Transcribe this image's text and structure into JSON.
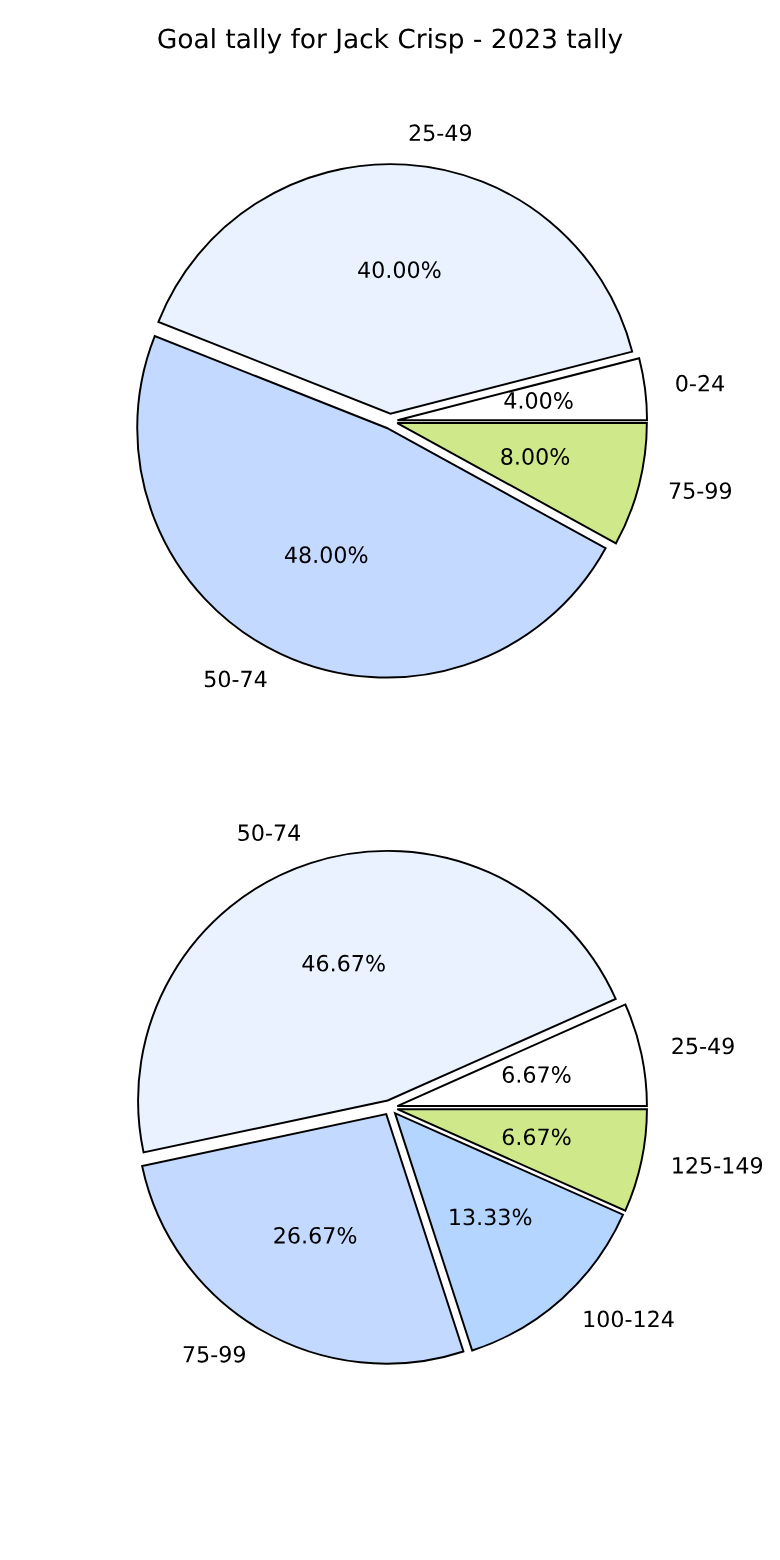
{
  "chart_data": [
    {
      "type": "pie",
      "title": "Goal tally for Jack Crisp - 2023 tally",
      "categories": [
        "0-24",
        "25-49",
        "50-74",
        "75-99"
      ],
      "values": [
        4.0,
        40.0,
        48.0,
        8.0
      ],
      "value_labels": [
        "4.00%",
        "40.00%",
        "48.00%",
        "8.00%"
      ],
      "colors": [
        "#ffffff",
        "#eaf2ff",
        "#c4d9ff",
        "#cfe98a"
      ]
    },
    {
      "type": "pie",
      "categories": [
        "25-49",
        "50-74",
        "75-99",
        "100-124",
        "125-149"
      ],
      "values": [
        6.67,
        46.67,
        26.67,
        13.33,
        6.67
      ],
      "value_labels": [
        "6.67%",
        "46.67%",
        "26.67%",
        "13.33%",
        "6.67%"
      ],
      "colors": [
        "#ffffff",
        "#eaf2ff",
        "#c4d9ff",
        "#b3d5ff",
        "#cfe98a"
      ]
    }
  ]
}
